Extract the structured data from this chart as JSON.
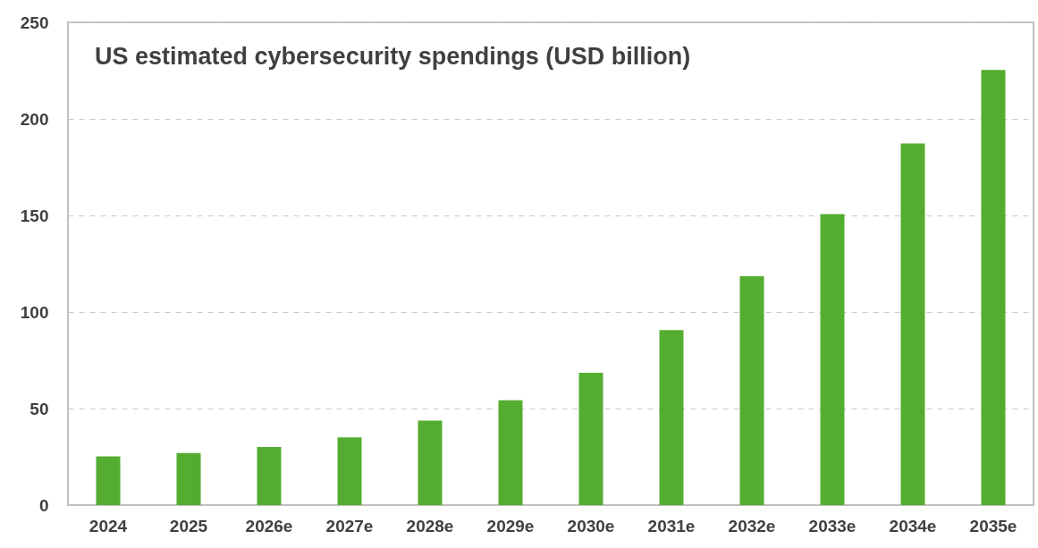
{
  "chart_data": {
    "type": "bar",
    "title": "US estimated cybersecurity spendings  (USD billion)",
    "categories": [
      "2024",
      "2025",
      "2026e",
      "2027e",
      "2028e",
      "2029e",
      "2030e",
      "2031e",
      "2032e",
      "2033e",
      "2034e",
      "2035e"
    ],
    "values": [
      25.2,
      27.0,
      30.1,
      35.1,
      43.7,
      54.3,
      68.5,
      90.6,
      118.5,
      150.7,
      187.3,
      225.4
    ],
    "color": "#54ad31",
    "ylim": [
      0,
      250
    ],
    "yticks": [
      0,
      50,
      100,
      150,
      200,
      250
    ],
    "grid": "y"
  }
}
